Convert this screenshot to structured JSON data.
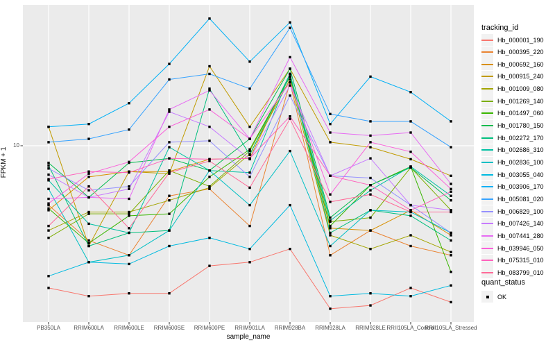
{
  "theme": {
    "panel_bg": "#EBEBEB",
    "grid_color": "#FFFFFF",
    "tick_color": "#333333",
    "tick_label_color": "#4D4D4D",
    "point_color": "#000000",
    "legend_key_bg": "#F2F2F2"
  },
  "chart_data": {
    "type": "line",
    "title": "",
    "xlabel": "sample_name",
    "ylabel": "FPKM + 1",
    "y_scale": "log10",
    "y_ticks": [
      10
    ],
    "y_domain": [
      0.87,
      70.3
    ],
    "grid": "major",
    "legend_position": "right",
    "legend_title": "tracking_id",
    "point_marker": {
      "legend_title": "quant_status",
      "label": "OK",
      "shape": "square",
      "color": "#000000"
    },
    "categories": [
      "PB350LA",
      "RRIM600LA",
      "RRIM600LE",
      "RRIM600SE",
      "RRIM600PE",
      "RRIM901LA",
      "RRIM928BA",
      "RRIM928LA",
      "RRIM928LE",
      "RRII105LA_Control",
      "RRII105LA_Stressed"
    ],
    "series": [
      {
        "name": "Hb_000001_190",
        "color": "#F8766D",
        "values": [
          1.4,
          1.25,
          1.3,
          1.3,
          1.9,
          2.0,
          2.4,
          1.05,
          1.1,
          1.4,
          1.15
        ]
      },
      {
        "name": "Hb_000395_220",
        "color": "#EA8331",
        "values": [
          4.4,
          2.7,
          2.2,
          5.0,
          5.5,
          3.3,
          24,
          2.2,
          3.1,
          2.5,
          2.2
        ]
      },
      {
        "name": "Hb_000692_160",
        "color": "#D89000",
        "values": [
          4.1,
          6.5,
          7.0,
          7.0,
          8.3,
          8.4,
          27,
          3.2,
          3.1,
          4.1,
          2.9
        ]
      },
      {
        "name": "Hb_000915_240",
        "color": "#C09B00",
        "values": [
          13,
          2.5,
          7.0,
          6.8,
          30,
          13,
          29,
          10.5,
          9.8,
          8.3,
          6.6
        ]
      },
      {
        "name": "Hb_001009_080",
        "color": "#A3A500",
        "values": [
          3.1,
          4.0,
          4.0,
          4.7,
          5.6,
          8.9,
          25,
          2.9,
          2.4,
          2.9,
          2.3
        ]
      },
      {
        "name": "Hb_001269_140",
        "color": "#7CAE00",
        "values": [
          2.8,
          3.9,
          3.9,
          7.1,
          5.7,
          9.3,
          26,
          3.5,
          3.7,
          7.4,
          4.1
        ]
      },
      {
        "name": "Hb_001497_060",
        "color": "#39B600",
        "values": [
          4.2,
          2.6,
          3.8,
          3.9,
          6.5,
          9.5,
          26,
          3.3,
          5.8,
          7.5,
          1.75
        ]
      },
      {
        "name": "Hb_001780_150",
        "color": "#00BB4E",
        "values": [
          7.9,
          4.9,
          7.9,
          8.4,
          7.1,
          11,
          29,
          3.7,
          5.8,
          7.4,
          4.7
        ]
      },
      {
        "name": "Hb_002272_170",
        "color": "#00BF7D",
        "values": [
          7.6,
          2.5,
          3.0,
          3.1,
          22,
          8.8,
          27,
          3.0,
          4.1,
          3.8,
          2.7
        ]
      },
      {
        "name": "Hb_002686_310",
        "color": "#00C1A3",
        "values": [
          6.2,
          3.4,
          3.0,
          9.8,
          7.1,
          6.9,
          27,
          3.55,
          5.4,
          7.5,
          5.0
        ]
      },
      {
        "name": "Hb_002836_100",
        "color": "#00BFC4",
        "values": [
          5.5,
          2.0,
          2.2,
          3.1,
          7.1,
          4.4,
          9.3,
          2.5,
          4.1,
          4.0,
          3.0
        ]
      },
      {
        "name": "Hb_003055_040",
        "color": "#00BAE0",
        "values": [
          1.65,
          2.0,
          1.95,
          2.5,
          2.8,
          2.4,
          4.4,
          1.25,
          1.3,
          1.25,
          1.45
        ]
      },
      {
        "name": "Hb_003906_170",
        "color": "#00B0F6",
        "values": [
          13,
          13.5,
          18,
          31,
          58,
          32,
          55,
          13.5,
          26,
          21,
          14
        ]
      },
      {
        "name": "Hb_005081_020",
        "color": "#35A2FF",
        "values": [
          10.5,
          11,
          12.5,
          25,
          27,
          22,
          51,
          15.5,
          14,
          14,
          9.8
        ]
      },
      {
        "name": "Hb_006829_100",
        "color": "#9590FF",
        "values": [
          7.3,
          5.4,
          5.7,
          10.5,
          10.7,
          6.5,
          20,
          6.6,
          6.4,
          4.4,
          3.0
        ]
      },
      {
        "name": "Hb_007426_140",
        "color": "#C77CFF",
        "values": [
          6.7,
          4.9,
          5.5,
          16,
          13,
          8.3,
          23,
          6.6,
          8.4,
          4.4,
          4.1
        ]
      },
      {
        "name": "Hb_007441_280",
        "color": "#E76BF3",
        "values": [
          4.8,
          4.9,
          4.8,
          16.5,
          21.5,
          11,
          34,
          12,
          11.5,
          12,
          5.9
        ]
      },
      {
        "name": "Hb_039946_050",
        "color": "#FA62DB",
        "values": [
          4.5,
          6.8,
          8.0,
          13,
          16.5,
          11,
          24,
          5.1,
          10.5,
          9.2,
          5.5
        ]
      },
      {
        "name": "Hb_075315_010",
        "color": "#FF62BC",
        "values": [
          6.3,
          7.0,
          6.9,
          8.4,
          8.3,
          8.4,
          15,
          6.6,
          5.8,
          4.1,
          5.3
        ]
      },
      {
        "name": "Hb_083799_010",
        "color": "#FF6A98",
        "values": [
          3.3,
          5.7,
          3.2,
          6.9,
          8.1,
          5.6,
          14.5,
          4.6,
          5.1,
          4.0,
          4.0
        ]
      }
    ]
  }
}
